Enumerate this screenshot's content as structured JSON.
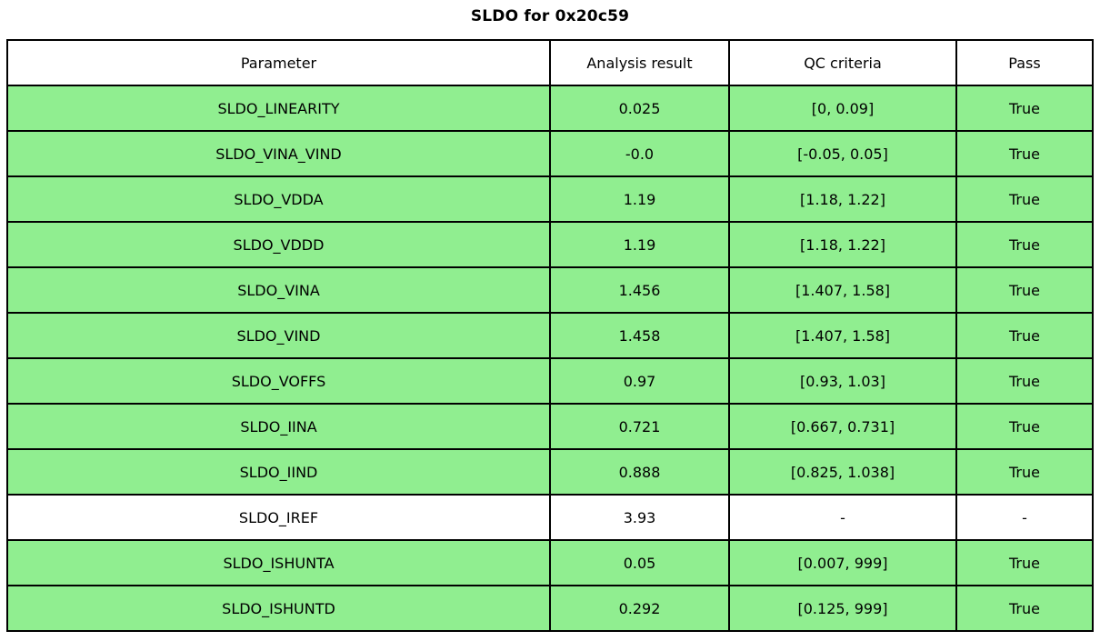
{
  "title": "SLDO for 0x20c59",
  "table": {
    "columns": [
      "Parameter",
      "Analysis result",
      "QC criteria",
      "Pass"
    ],
    "rows": [
      {
        "parameter": "SLDO_LINEARITY",
        "result": "0.025",
        "criteria": "[0, 0.09]",
        "pass": "True",
        "highlight": true
      },
      {
        "parameter": "SLDO_VINA_VIND",
        "result": "-0.0",
        "criteria": "[-0.05, 0.05]",
        "pass": "True",
        "highlight": true
      },
      {
        "parameter": "SLDO_VDDA",
        "result": "1.19",
        "criteria": "[1.18, 1.22]",
        "pass": "True",
        "highlight": true
      },
      {
        "parameter": "SLDO_VDDD",
        "result": "1.19",
        "criteria": "[1.18, 1.22]",
        "pass": "True",
        "highlight": true
      },
      {
        "parameter": "SLDO_VINA",
        "result": "1.456",
        "criteria": "[1.407, 1.58]",
        "pass": "True",
        "highlight": true
      },
      {
        "parameter": "SLDO_VIND",
        "result": "1.458",
        "criteria": "[1.407, 1.58]",
        "pass": "True",
        "highlight": true
      },
      {
        "parameter": "SLDO_VOFFS",
        "result": "0.97",
        "criteria": "[0.93, 1.03]",
        "pass": "True",
        "highlight": true
      },
      {
        "parameter": "SLDO_IINA",
        "result": "0.721",
        "criteria": "[0.667, 0.731]",
        "pass": "True",
        "highlight": true
      },
      {
        "parameter": "SLDO_IIND",
        "result": "0.888",
        "criteria": "[0.825, 1.038]",
        "pass": "True",
        "highlight": true
      },
      {
        "parameter": "SLDO_IREF",
        "result": "3.93",
        "criteria": "-",
        "pass": "-",
        "highlight": false
      },
      {
        "parameter": "SLDO_ISHUNTA",
        "result": "0.05",
        "criteria": "[0.007, 999]",
        "pass": "True",
        "highlight": true
      },
      {
        "parameter": "SLDO_ISHUNTD",
        "result": "0.292",
        "criteria": "[0.125, 999]",
        "pass": "True",
        "highlight": true
      }
    ],
    "colors": {
      "pass_row_bg": "#90ee90",
      "neutral_row_bg": "#ffffff",
      "border": "#000000"
    }
  },
  "chart_data": {
    "type": "table",
    "title": "SLDO for 0x20c59",
    "columns": [
      "Parameter",
      "Analysis result",
      "QC criteria",
      "Pass"
    ],
    "rows": [
      [
        "SLDO_LINEARITY",
        "0.025",
        "[0, 0.09]",
        "True"
      ],
      [
        "SLDO_VINA_VIND",
        "-0.0",
        "[-0.05, 0.05]",
        "True"
      ],
      [
        "SLDO_VDDA",
        "1.19",
        "[1.18, 1.22]",
        "True"
      ],
      [
        "SLDO_VDDD",
        "1.19",
        "[1.18, 1.22]",
        "True"
      ],
      [
        "SLDO_VINA",
        "1.456",
        "[1.407, 1.58]",
        "True"
      ],
      [
        "SLDO_VIND",
        "1.458",
        "[1.407, 1.58]",
        "True"
      ],
      [
        "SLDO_VOFFS",
        "0.97",
        "[0.93, 1.03]",
        "True"
      ],
      [
        "SLDO_IINA",
        "0.721",
        "[0.667, 0.731]",
        "True"
      ],
      [
        "SLDO_IIND",
        "0.888",
        "[0.825, 1.038]",
        "True"
      ],
      [
        "SLDO_IREF",
        "3.93",
        "-",
        "-"
      ],
      [
        "SLDO_ISHUNTA",
        "0.05",
        "[0.007, 999]",
        "True"
      ],
      [
        "SLDO_ISHUNTD",
        "0.292",
        "[0.125, 999]",
        "True"
      ]
    ]
  }
}
